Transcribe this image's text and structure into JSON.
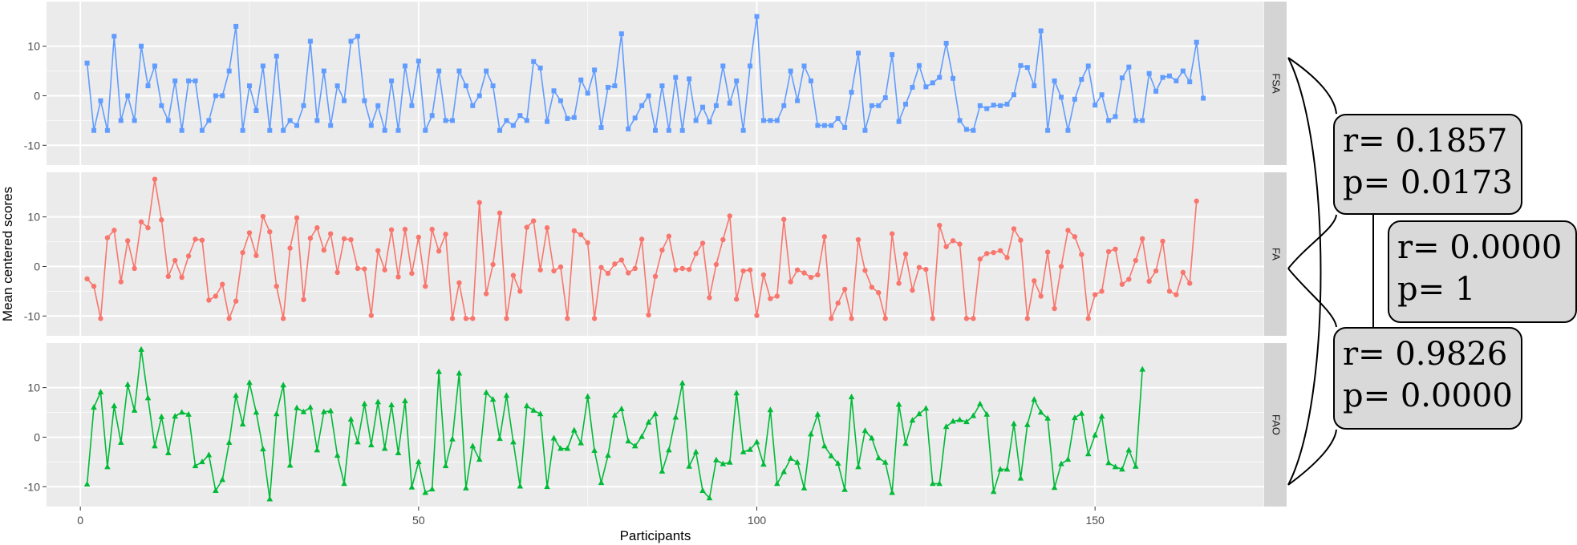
{
  "chart_data": {
    "type": "line",
    "xlabel": "Participants",
    "ylabel": "Mean centered scores",
    "xlim": [
      -5,
      175
    ],
    "ylim": [
      -14,
      19
    ],
    "xticks": [
      0,
      50,
      100,
      150
    ],
    "yticks": [
      -10,
      0,
      10
    ],
    "x_start": 1,
    "panels": [
      {
        "label": "FSA",
        "color": "#619cff",
        "marker": "square",
        "values": [
          6.6,
          -7,
          -1,
          -7,
          12,
          -5,
          0,
          -5,
          10,
          2,
          6,
          -2,
          -5,
          3,
          -7,
          3,
          3,
          -7,
          -5,
          0,
          0,
          5,
          14,
          -7,
          2,
          -3,
          6,
          -7,
          8,
          -7,
          -5,
          -6,
          -2,
          11,
          -5,
          5,
          -6,
          2,
          -1,
          11,
          12,
          -1,
          -6,
          -2,
          -7,
          3,
          -7,
          6,
          -2,
          7,
          -7,
          -4,
          5,
          -5,
          -5,
          5,
          2,
          -2,
          0,
          5,
          2,
          -7,
          -5,
          -6,
          -4,
          -5,
          6.9,
          5.6,
          -5.2,
          1,
          -1,
          -4.6,
          -4.4,
          3.2,
          0.5,
          5.2,
          -6.4,
          1.7,
          2,
          12.5,
          -6.7,
          -4.5,
          -2,
          0,
          -7,
          2,
          -7,
          3.7,
          -7,
          3.4,
          -5,
          -2.3,
          -5.3,
          -2,
          6,
          -1.5,
          3,
          -7,
          6,
          16,
          -5,
          -5,
          -5,
          -2,
          5,
          -1,
          6,
          3,
          -6,
          -6,
          -6,
          -4.6,
          -6.4,
          0.7,
          8.6,
          -7,
          -2,
          -2,
          -0.4,
          8.3,
          -5.2,
          -1.7,
          1.7,
          6.1,
          1.8,
          2.6,
          3.7,
          10.6,
          3.5,
          -5,
          -6.8,
          -7,
          -2,
          -2.6,
          -1.9,
          -2,
          -1.7,
          0.2,
          6.1,
          5.7,
          2,
          13.1,
          -7,
          3,
          -0.3,
          -7,
          -0.7,
          3.3,
          6,
          -1.9,
          0.2,
          -5,
          -4.2,
          3.6,
          5.8,
          -5,
          -5,
          4.5,
          0.9,
          3.7,
          4,
          3,
          5,
          2.8,
          10.8,
          -0.5
        ]
      },
      {
        "label": "FA",
        "color": "#f8766d",
        "marker": "circle",
        "values": [
          -2.5,
          -4,
          -10.5,
          5.8,
          7.3,
          -3.1,
          5.2,
          -0.4,
          9,
          7.8,
          17.6,
          9.4,
          -2,
          1.2,
          -2.2,
          2.1,
          5.5,
          5.3,
          -6.8,
          -6,
          -3.6,
          -10.5,
          -7,
          2.8,
          6.8,
          2.2,
          10.1,
          7,
          -4,
          -10.5,
          3.7,
          9.8,
          -6.7,
          5.7,
          7.8,
          3.3,
          6.6,
          -1.2,
          5.6,
          5.4,
          -0.4,
          -0.5,
          -9.9,
          3.2,
          -0.7,
          7.4,
          -2.1,
          7.5,
          -1.4,
          5.9,
          -4,
          7.5,
          3.1,
          6.5,
          -10.5,
          -3.3,
          -10.5,
          -10.5,
          12.9,
          -5.5,
          0.4,
          10.8,
          -10.5,
          -1.8,
          -5,
          7.9,
          9.2,
          -0.7,
          7.8,
          -0.9,
          -0.1,
          -10.5,
          7.2,
          6.4,
          4.8,
          -10.5,
          -0.2,
          -1.4,
          0.5,
          1.3,
          -1.3,
          -0.4,
          5.5,
          -9.8,
          -2,
          3.3,
          6.1,
          -0.7,
          -0.4,
          -0.6,
          2.6,
          4.7,
          -6.3,
          0.4,
          5.4,
          10.2,
          -6.6,
          -0.9,
          -0.7,
          -9.9,
          -1.7,
          -6.5,
          -6,
          9.5,
          -3.1,
          -0.7,
          -1.3,
          -2.2,
          -1.7,
          6,
          -10.5,
          -7.4,
          -4.6,
          -10.5,
          5.4,
          -0.8,
          -4.2,
          -5.3,
          -10.5,
          6.6,
          -3.4,
          2.5,
          -4.8,
          -0.2,
          -0.6,
          -10.5,
          8.3,
          4,
          5.2,
          4.5,
          -10.5,
          -10.5,
          1.5,
          2.6,
          2.8,
          3.2,
          1.8,
          7.6,
          5.3,
          -10.5,
          -2.9,
          -6,
          2.9,
          -8.5,
          0,
          7.3,
          6,
          2.4,
          -10.5,
          -5.7,
          -5,
          3,
          3.5,
          -3.6,
          -2.6,
          1.2,
          5.6,
          -3,
          -0.9,
          5.1,
          -5,
          -5.7,
          -1.2,
          -3.4,
          13.2
        ]
      },
      {
        "label": "FAO",
        "color": "#00ba38",
        "marker": "triangle",
        "values": [
          -9.5,
          6,
          9.1,
          -6,
          6.3,
          -1.1,
          10.6,
          5.4,
          17.7,
          7.9,
          -1.8,
          4.1,
          -3.2,
          4.2,
          5,
          4.6,
          -5.8,
          -5,
          -3.6,
          -10.8,
          -8.6,
          -1.1,
          8.4,
          2.6,
          11,
          5,
          -2.4,
          -12.5,
          4.7,
          10.5,
          -5.7,
          5.9,
          5.1,
          6,
          -2.6,
          5.1,
          5.3,
          -3.7,
          -9.4,
          3.6,
          -1,
          6.7,
          -1.6,
          7.1,
          -2.3,
          6.5,
          -3.2,
          7.3,
          -10.1,
          -5,
          -11.2,
          -10.5,
          13.2,
          -5.8,
          -0.4,
          12.9,
          -10.3,
          -1.8,
          -4.5,
          9,
          7.6,
          -0.3,
          8.4,
          -1,
          -9.9,
          6.3,
          5.4,
          4.7,
          -10,
          -0.2,
          -2.3,
          -2.3,
          1.4,
          -1.2,
          8.2,
          -2.7,
          -9.2,
          -3.7,
          4.4,
          5.7,
          -0.8,
          -1.8,
          0.1,
          3,
          4.7,
          -6.9,
          -2.6,
          4,
          10.9,
          -5.9,
          -3,
          -10.8,
          -12.3,
          -4.6,
          -5.4,
          -5.1,
          8.9,
          -3,
          -2.5,
          -1,
          -5.5,
          5.5,
          -9.4,
          -7,
          -4.3,
          -5.1,
          -10.3,
          0.6,
          4.6,
          -1.8,
          -3.8,
          -5.3,
          -10.6,
          8.1,
          -6,
          1.3,
          -0.2,
          -4.2,
          -5.1,
          -11.2,
          6.6,
          -1.3,
          3.4,
          4.7,
          5.8,
          -9.4,
          -9.4,
          2.1,
          3.2,
          3.5,
          3.1,
          4.3,
          6.7,
          4.6,
          -11,
          -6.5,
          -6.5,
          2.7,
          -8.3,
          2.5,
          7.6,
          5,
          3.8,
          -10.2,
          -5.4,
          -4.5,
          3.9,
          4.8,
          -3.4,
          0.4,
          4.2,
          -5.2,
          -6,
          -6.5,
          -2.6,
          -5.9,
          13.7
        ]
      }
    ]
  },
  "annotations": [
    {
      "r": "r= 0.1857",
      "p": "p= 0.0173"
    },
    {
      "r": "r= 0.0000",
      "p": "p= 1"
    },
    {
      "r": "r= 0.9826",
      "p": "p= 0.0000"
    }
  ]
}
